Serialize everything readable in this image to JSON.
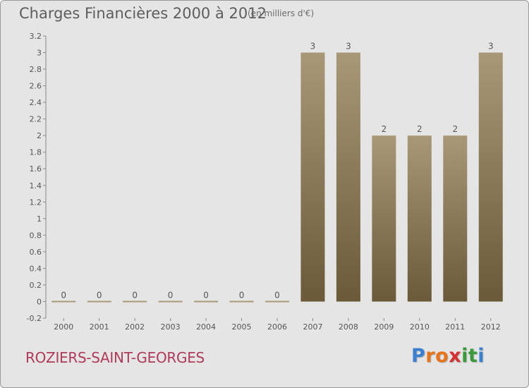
{
  "header": {
    "title": "Charges Financières 2000 à 2012",
    "units": "(en milliers d'€)"
  },
  "footer": {
    "commune": "ROZIERS-SAINT-GEORGES",
    "logo_letters": [
      "P",
      "r",
      "o",
      "x",
      "i",
      "t",
      "i"
    ],
    "logo_colors": [
      "#3a7fd0",
      "#e8731a",
      "#e8731a",
      "#d73030",
      "#3a9a3a",
      "#3a9a3a",
      "#3a7fd0"
    ]
  },
  "colors": {
    "bar_top": "#a89878",
    "bar_bottom": "#6b5a3a",
    "zero_line": "#a89878",
    "axis_text": "#555555",
    "grid": "#cfcfcf"
  },
  "chart_data": {
    "type": "bar",
    "categories": [
      "2000",
      "2001",
      "2002",
      "2003",
      "2004",
      "2005",
      "2006",
      "2007",
      "2008",
      "2009",
      "2010",
      "2011",
      "2012"
    ],
    "values": [
      0,
      0,
      0,
      0,
      0,
      0,
      0,
      3,
      3,
      2,
      2,
      2,
      3
    ],
    "data_labels": [
      "0",
      "0",
      "0",
      "0",
      "0",
      "0",
      "0",
      "3",
      "3",
      "2",
      "2",
      "2",
      "3"
    ],
    "yticks": [
      "-0.2",
      "0",
      "0.2",
      "0.4",
      "0.6",
      "0.8",
      "1",
      "1.2",
      "1.4",
      "1.6",
      "1.8",
      "2",
      "2.2",
      "2.4",
      "2.6",
      "2.8",
      "3",
      "3.2"
    ],
    "ylim": [
      -0.2,
      3.2
    ],
    "title": "Charges Financières 2000 à 2012",
    "xlabel": "",
    "ylabel": "",
    "grid": false,
    "legend": "none"
  }
}
